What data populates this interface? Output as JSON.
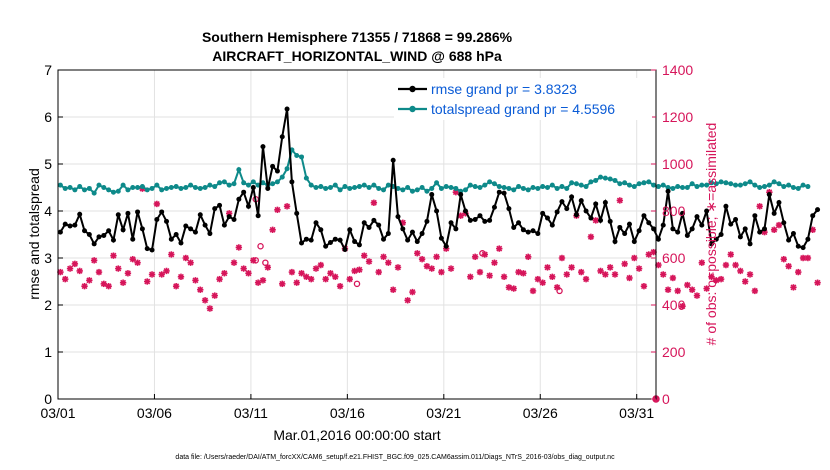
{
  "colors": {
    "rmse": "#000000",
    "spread": "#0e8a8a",
    "obs": "#d6155a",
    "legend_text": "#0a5bd6",
    "grid": "#e2e2e2"
  },
  "chart_data": {
    "type": "line",
    "title": "Southern Hemisphere 71355 / 71868 = 99.286%",
    "subtitle": "AIRCRAFT_HORIZONTAL_WIND @ 688 hPa",
    "xlabel": "Mar.01,2016 00:00:00 start",
    "ylabel": "rmse and totalspread",
    "ylabel_right": "# of obs: o=possible; ∗=assimilated",
    "footer": "data file: /Users/raeder/DAI/ATM_forcXX/CAM6_setup/f.e21.FHIST_BGC.f09_025.CAM6assim.011/Diags_NTrS_2016-03/obs_diag_output.nc",
    "xlim": [
      0,
      31
    ],
    "ylim": [
      0,
      7
    ],
    "ylim_right": [
      0,
      1400
    ],
    "xticks": [
      0,
      5,
      10,
      15,
      20,
      25,
      30
    ],
    "xtick_labels": [
      "03/01",
      "03/06",
      "03/11",
      "03/16",
      "03/21",
      "03/26",
      "03/31"
    ],
    "yticks": [
      0,
      1,
      2,
      3,
      4,
      5,
      6,
      7
    ],
    "yticks_right": [
      0,
      200,
      400,
      600,
      800,
      1000,
      1200,
      1400
    ],
    "grid": true,
    "legend": [
      {
        "name": "rmse grand pr = 3.8323",
        "series": "rmse"
      },
      {
        "name": "totalspread grand pr = 4.5596",
        "series": "spread"
      }
    ],
    "bin_width_days": 0.25,
    "series": [
      {
        "name": "rmse",
        "values": [
          3.55,
          3.72,
          3.68,
          3.7,
          3.93,
          3.58,
          3.5,
          3.3,
          3.45,
          3.48,
          3.58,
          3.38,
          3.92,
          3.6,
          3.95,
          3.4,
          3.98,
          3.62,
          3.2,
          3.17,
          3.82,
          3.98,
          3.78,
          3.4,
          3.5,
          3.32,
          3.68,
          3.62,
          3.55,
          3.92,
          3.7,
          3.52,
          4.05,
          4.12,
          3.7,
          3.88,
          3.82,
          4.25,
          4.4,
          4.1,
          4.5,
          3.9,
          5.37,
          4.48,
          4.95,
          4.85,
          5.58,
          6.17,
          4.62,
          3.95,
          3.32,
          3.4,
          3.38,
          3.75,
          3.6,
          3.25,
          3.33,
          3.4,
          3.38,
          3.18,
          3.6,
          3.35,
          3.28,
          3.75,
          3.65,
          3.8,
          3.7,
          3.4,
          3.52,
          5.08,
          3.88,
          3.62,
          3.38,
          3.55,
          3.35,
          3.52,
          3.78,
          4.35,
          4.0,
          3.42,
          3.25,
          3.75,
          3.62,
          4.35,
          4.0,
          3.8,
          3.82,
          3.9,
          3.78,
          3.8,
          4.08,
          4.4,
          4.38,
          4.05,
          3.65,
          3.75,
          3.6,
          3.55,
          3.58,
          3.52,
          3.95,
          3.85,
          3.7,
          3.98,
          4.2,
          4.05,
          4.3,
          3.92,
          4.22,
          4.0,
          3.85,
          4.15,
          3.8,
          4.18,
          3.78,
          3.35,
          3.65,
          3.52,
          3.72,
          3.35,
          3.58,
          3.9,
          3.75,
          3.62,
          3.4,
          3.7,
          4.42,
          3.62,
          3.55,
          3.95,
          3.48,
          3.62,
          3.88,
          3.7,
          4.0,
          3.3,
          3.4,
          3.5,
          4.1,
          3.72,
          3.82,
          3.45,
          3.62,
          3.3,
          3.9,
          3.55,
          3.62,
          4.35,
          3.95,
          4.18,
          3.75,
          3.38,
          3.52,
          3.25,
          3.22,
          3.4,
          3.9,
          4.03
        ]
      },
      {
        "name": "totalspread",
        "values": [
          4.55,
          4.48,
          4.5,
          4.45,
          4.52,
          4.45,
          4.48,
          4.38,
          4.55,
          4.5,
          4.45,
          4.4,
          4.42,
          4.55,
          4.45,
          4.5,
          4.5,
          4.52,
          4.45,
          4.48,
          4.55,
          4.45,
          4.48,
          4.5,
          4.52,
          4.48,
          4.5,
          4.55,
          4.5,
          4.48,
          4.5,
          4.55,
          4.52,
          4.6,
          4.62,
          4.55,
          4.58,
          4.88,
          4.6,
          4.55,
          4.62,
          4.55,
          4.6,
          4.55,
          4.58,
          4.62,
          4.72,
          4.9,
          5.3,
          5.18,
          5.15,
          4.7,
          4.55,
          4.5,
          4.52,
          4.48,
          4.5,
          4.55,
          4.45,
          4.52,
          4.48,
          4.5,
          4.52,
          4.55,
          4.5,
          4.55,
          4.48,
          4.45,
          4.55,
          4.52,
          4.48,
          4.45,
          4.5,
          4.42,
          4.45,
          4.5,
          4.42,
          4.48,
          4.6,
          4.48,
          4.52,
          4.5,
          4.48,
          4.42,
          4.45,
          4.55,
          4.52,
          4.5,
          4.55,
          4.62,
          4.58,
          4.52,
          4.5,
          4.48,
          4.45,
          4.52,
          4.48,
          4.45,
          4.5,
          4.48,
          4.52,
          4.5,
          4.55,
          4.48,
          4.52,
          4.48,
          4.6,
          4.58,
          4.55,
          4.52,
          4.62,
          4.65,
          4.72,
          4.7,
          4.68,
          4.65,
          4.58,
          4.6,
          4.55,
          4.52,
          4.58,
          4.6,
          4.62,
          4.55,
          4.52,
          4.55,
          4.5,
          4.48,
          4.52,
          4.5,
          4.5,
          4.58,
          4.52,
          4.55,
          4.55,
          4.6,
          4.58,
          4.62,
          4.6,
          4.58,
          4.55,
          4.55,
          4.58,
          4.62,
          4.55,
          4.5,
          4.52,
          4.55,
          4.62,
          4.58,
          4.52,
          4.55,
          4.5,
          4.48,
          4.55,
          4.52
        ]
      },
      {
        "name": "obs_assimilated",
        "values": [
          540,
          510,
          555,
          575,
          545,
          480,
          505,
          590,
          540,
          490,
          480,
          610,
          555,
          495,
          535,
          595,
          580,
          895,
          500,
          530,
          830,
          530,
          545,
          615,
          480,
          520,
          600,
          580,
          505,
          465,
          420,
          385,
          440,
          510,
          535,
          790,
          580,
          645,
          555,
          535,
          590,
          495,
          505,
          560,
          720,
          805,
          490,
          820,
          540,
          495,
          535,
          520,
          510,
          555,
          570,
          510,
          535,
          520,
          480,
          640,
          510,
          545,
          550,
          610,
          585,
          835,
          540,
          605,
          580,
          465,
          560,
          750,
          420,
          455,
          620,
          595,
          565,
          555,
          605,
          540,
          640,
          555,
          880,
          780,
          790,
          520,
          605,
          540,
          615,
          525,
          580,
          640,
          520,
          475,
          470,
          540,
          535,
          605,
          460,
          510,
          495,
          560,
          520,
          475,
          600,
          530,
          560,
          780,
          540,
          510,
          690,
          760,
          545,
          530,
          560,
          530,
          845,
          575,
          515,
          600,
          555,
          480,
          615,
          625,
          570,
          530,
          465,
          515,
          460,
          395,
          485,
          465,
          440,
          580,
          470,
          520,
          505,
          510,
          570,
          615,
          570,
          545,
          500,
          530,
          460,
          820,
          710,
          880,
          720,
          740,
          595,
          565,
          475,
          540,
          600,
          600,
          720,
          495
        ]
      }
    ],
    "obs_possible_extra": [
      {
        "t": 10.25,
        "count": 590
      },
      {
        "t": 10.5,
        "count": 650
      },
      {
        "t": 10.75,
        "count": 580
      },
      {
        "t": 10.25,
        "count": 850
      },
      {
        "t": 15.5,
        "count": 490
      },
      {
        "t": 22.0,
        "count": 620
      },
      {
        "t": 26.0,
        "count": 460
      }
    ]
  }
}
